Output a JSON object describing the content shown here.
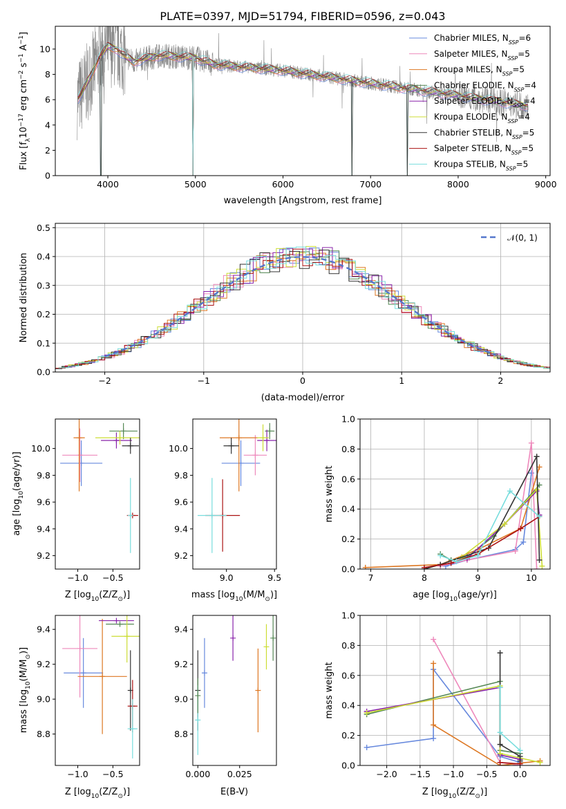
{
  "figure": {
    "title": "PLATE=0397, MJD=51794, FIBERID=0596, z=0.043",
    "models": [
      {
        "label": "Chabrier MILES, N",
        "nssp": "=6",
        "color": "#6688dd"
      },
      {
        "label": "Salpeter MILES, N",
        "nssp": "=5",
        "color": "#ee88bb"
      },
      {
        "label": "Kroupa MILES, N",
        "nssp": "=5",
        "color": "#dd7722"
      },
      {
        "label": "Chabrier ELODIE, N",
        "nssp": "=4",
        "color": "#558855"
      },
      {
        "label": "Salpeter ELODIE, N",
        "nssp": "=4",
        "color": "#8822aa"
      },
      {
        "label": "Kroupa ELODIE, N",
        "nssp": "=4",
        "color": "#ccdd33"
      },
      {
        "label": "Chabrier STELIB, N",
        "nssp": "=5",
        "color": "#333333"
      },
      {
        "label": "Salpeter STELIB, N",
        "nssp": "=5",
        "color": "#aa1111"
      },
      {
        "label": "Kroupa STELIB, N",
        "nssp": "=5",
        "color": "#77dddd"
      }
    ],
    "ssp_subscript": "SSP"
  },
  "chart_data": [
    {
      "id": "spectrum",
      "type": "line",
      "xlabel": "wavelength [Angstrom, rest frame]",
      "ylabel": "Flux [f",
      "ylabel_parts": [
        "Flux [f",
        "λ",
        "10",
        "−17",
        " erg cm",
        "−2",
        " s",
        "−1",
        " A",
        "−1",
        "]"
      ],
      "xlim": [
        3400,
        9050
      ],
      "ylim": [
        0,
        11.8
      ],
      "xticks": [
        4000,
        5000,
        6000,
        7000,
        8000,
        9000
      ],
      "yticks": [
        0,
        2,
        4,
        6,
        8,
        10
      ],
      "observed_color": "#888888",
      "observed_range": [
        3650,
        8800
      ],
      "model_profile": {
        "x": [
          3650,
          3700,
          3800,
          3900,
          4000,
          4100,
          4200,
          4300,
          4400,
          4600,
          4800,
          5000,
          5200,
          5500,
          6000,
          6500,
          7000,
          7500,
          8000,
          8500,
          8800
        ],
        "y": [
          6.0,
          6.5,
          7.8,
          9.3,
          10.2,
          10.0,
          9.4,
          9.0,
          9.2,
          9.5,
          9.4,
          9.3,
          8.8,
          8.6,
          8.3,
          7.8,
          7.3,
          6.8,
          6.3,
          5.8,
          5.5
        ]
      }
    },
    {
      "id": "residuals",
      "type": "histogram",
      "xlabel": "(data-model)/error",
      "ylabel": "Normed distribution",
      "xlim": [
        -2.5,
        2.5
      ],
      "ylim": [
        0,
        0.515
      ],
      "xticks": [
        -2,
        -1,
        0,
        1,
        2
      ],
      "yticks": [
        0.0,
        0.1,
        0.2,
        0.3,
        0.4,
        0.5
      ],
      "grid": true,
      "legend": "top-right",
      "reference_label": "𝒩(0, 1)",
      "reference_color": "#5577cc"
    },
    {
      "id": "age_vs_Z",
      "type": "scatter",
      "xlabel": "Z [log",
      "xlabel_parts": [
        "Z [log",
        "10",
        "(Z/Z",
        "⊙",
        ")]"
      ],
      "ylabel_parts": [
        "age  [log",
        "10",
        "(age/yr)]"
      ],
      "xlim": [
        -1.32,
        -0.12
      ],
      "ylim": [
        9.1,
        10.22
      ],
      "xticks": [
        -1.0,
        -0.5
      ],
      "yticks": [
        9.2,
        9.4,
        9.6,
        9.8,
        10.0
      ],
      "points": [
        {
          "x": -0.95,
          "y": 9.89,
          "ex": 0.3,
          "ey": 0.17,
          "c": 0
        },
        {
          "x": -0.97,
          "y": 9.95,
          "ex": 0.25,
          "ey": 0.2,
          "c": 1
        },
        {
          "x": -0.98,
          "y": 10.08,
          "ex": 0.08,
          "ey": 0.4,
          "c": 2
        },
        {
          "x": -0.35,
          "y": 10.13,
          "ex": 0.2,
          "ey": 0.06,
          "c": 3
        },
        {
          "x": -0.45,
          "y": 10.06,
          "ex": 0.22,
          "ey": 0.06,
          "c": 4
        },
        {
          "x": -0.4,
          "y": 10.08,
          "ex": 0.35,
          "ey": 0.05,
          "c": 5
        },
        {
          "x": -0.25,
          "y": 10.02,
          "ex": 0.12,
          "ey": 0.06,
          "c": 6
        },
        {
          "x": -0.22,
          "y": 9.5,
          "ex": 0.08,
          "ey": 0.0,
          "c": 7
        },
        {
          "x": -0.25,
          "y": 9.5,
          "ex": 0.0,
          "ey": 0.28,
          "c": 8
        }
      ]
    },
    {
      "id": "age_vs_mass",
      "type": "scatter",
      "xlabel_parts": [
        "mass [log",
        "10",
        "(M/M",
        "⊙",
        ")]"
      ],
      "xlim": [
        8.65,
        9.52
      ],
      "ylim": [
        9.1,
        10.22
      ],
      "xticks": [
        9.0,
        9.5
      ],
      "yticks": [
        9.2,
        9.4,
        9.6,
        9.8,
        10.0
      ],
      "points": [
        {
          "x": 9.15,
          "y": 9.89,
          "ex": 0.2,
          "ey": 0.17,
          "c": 0
        },
        {
          "x": 9.3,
          "y": 9.95,
          "ex": 0.12,
          "ey": 0.15,
          "c": 1
        },
        {
          "x": 9.13,
          "y": 10.08,
          "ex": 0.2,
          "ey": 0.4,
          "c": 2
        },
        {
          "x": 9.45,
          "y": 10.13,
          "ex": 0.05,
          "ey": 0.06,
          "c": 3
        },
        {
          "x": 9.42,
          "y": 10.06,
          "ex": 0.1,
          "ey": 0.08,
          "c": 4
        },
        {
          "x": 9.38,
          "y": 10.08,
          "ex": 0.06,
          "ey": 0.1,
          "c": 5
        },
        {
          "x": 9.05,
          "y": 10.02,
          "ex": 0.08,
          "ey": 0.06,
          "c": 6
        },
        {
          "x": 8.96,
          "y": 9.5,
          "ex": 0.18,
          "ey": 0.27,
          "c": 7
        },
        {
          "x": 8.85,
          "y": 9.5,
          "ex": 0.15,
          "ey": 0.28,
          "c": 8
        }
      ]
    },
    {
      "id": "weight_vs_age",
      "type": "line",
      "xlabel_parts": [
        "age  [log",
        "10",
        "(age/yr)]"
      ],
      "ylabel": "mass weight",
      "xlim": [
        6.8,
        10.35
      ],
      "ylim": [
        0,
        1.0
      ],
      "xticks": [
        7,
        8,
        9,
        10
      ],
      "yticks": [
        0.0,
        0.2,
        0.4,
        0.6,
        0.8,
        1.0
      ],
      "grid": true,
      "series": [
        {
          "c": 0,
          "x": [
            8.4,
            8.8,
            9.7,
            9.85,
            10.0
          ],
          "y": [
            0.02,
            0.06,
            0.13,
            0.18,
            0.64
          ]
        },
        {
          "c": 1,
          "x": [
            8.3,
            8.8,
            9.7,
            10.0,
            10.1
          ],
          "y": [
            0.02,
            0.06,
            0.12,
            0.84,
            0.0
          ]
        },
        {
          "c": 2,
          "x": [
            6.9,
            8.3,
            9.0,
            9.8,
            10.15
          ],
          "y": [
            0.01,
            0.03,
            0.13,
            0.27,
            0.68
          ]
        },
        {
          "c": 3,
          "x": [
            8.3,
            8.5,
            8.8,
            9.3,
            10.15
          ],
          "y": [
            0.1,
            0.06,
            0.08,
            0.22,
            0.56
          ]
        },
        {
          "c": 4,
          "x": [
            8.8,
            9.5,
            10.1,
            10.15
          ],
          "y": [
            0.07,
            0.3,
            0.52,
            0.36
          ]
        },
        {
          "c": 5,
          "x": [
            8.7,
            9.5,
            10.1,
            10.2
          ],
          "y": [
            0.08,
            0.3,
            0.53,
            0.02
          ]
        },
        {
          "c": 6,
          "x": [
            8.0,
            8.3,
            9.2,
            10.1,
            10.15
          ],
          "y": [
            0.0,
            0.03,
            0.14,
            0.75,
            0.06
          ]
        },
        {
          "c": 7,
          "x": [
            8.0,
            8.5,
            9.0,
            9.8,
            10.15
          ],
          "y": [
            0.01,
            0.04,
            0.1,
            0.27,
            0.35
          ]
        },
        {
          "c": 8,
          "x": [
            8.3,
            8.6,
            9.0,
            9.6,
            10.15
          ],
          "y": [
            0.09,
            0.05,
            0.09,
            0.52,
            0.35
          ]
        }
      ]
    },
    {
      "id": "mass_vs_Z",
      "type": "scatter",
      "xlabel_parts": [
        "Z [log",
        "10",
        "(Z/Z",
        "⊙",
        ")]"
      ],
      "ylabel_parts": [
        "mass [log",
        "10",
        "(M/M",
        "⊙",
        ")]"
      ],
      "xlim": [
        -1.32,
        -0.12
      ],
      "ylim": [
        8.62,
        9.48
      ],
      "xticks": [
        -1.0,
        -0.5
      ],
      "yticks": [
        8.8,
        9.0,
        9.2,
        9.4
      ],
      "points": [
        {
          "x": -0.92,
          "y": 9.15,
          "ex": 0.28,
          "ey": 0.2,
          "c": 0
        },
        {
          "x": -0.97,
          "y": 9.29,
          "ex": 0.25,
          "ey": 0.28,
          "c": 1
        },
        {
          "x": -0.65,
          "y": 9.13,
          "ex": 0.35,
          "ey": 0.33,
          "c": 2
        },
        {
          "x": -0.4,
          "y": 9.43,
          "ex": 0.2,
          "ey": 0.0,
          "c": 3
        },
        {
          "x": -0.45,
          "y": 9.45,
          "ex": 0.25,
          "ey": 0.0,
          "c": 4
        },
        {
          "x": -0.3,
          "y": 9.36,
          "ex": 0.22,
          "ey": 0.15,
          "c": 5
        },
        {
          "x": -0.25,
          "y": 9.05,
          "ex": 0.0,
          "ey": 0.23,
          "c": 6
        },
        {
          "x": -0.22,
          "y": 8.96,
          "ex": 0.07,
          "ey": 0.15,
          "c": 7
        },
        {
          "x": -0.22,
          "y": 8.83,
          "ex": 0.07,
          "ey": 0.17,
          "c": 8
        }
      ]
    },
    {
      "id": "mass_vs_ebv",
      "type": "scatter",
      "xlabel": "E(B-V)",
      "xlim": [
        -0.003,
        0.047
      ],
      "ylim": [
        8.62,
        9.48
      ],
      "xticks": [
        0.0,
        0.025
      ],
      "yticks": [
        8.8,
        9.0,
        9.2,
        9.4
      ],
      "points": [
        {
          "x": 0.0,
          "y": 9.05,
          "ey": 0.23,
          "c": 6
        },
        {
          "x": 0.0,
          "y": 8.88,
          "ey": 0.2,
          "c": 8
        },
        {
          "x": 0.0,
          "y": 9.02,
          "ey": 0.1,
          "c": 3
        },
        {
          "x": 0.004,
          "y": 9.15,
          "ey": 0.2,
          "c": 0
        },
        {
          "x": 0.021,
          "y": 9.35,
          "ey": 0.13,
          "c": 4
        },
        {
          "x": 0.036,
          "y": 9.05,
          "ey": 0.24,
          "c": 2
        },
        {
          "x": 0.041,
          "y": 9.3,
          "ey": 0.13,
          "c": 5
        },
        {
          "x": 0.045,
          "y": 9.35,
          "ey": 0.13,
          "c": 3
        }
      ]
    },
    {
      "id": "weight_vs_Z",
      "type": "line",
      "xlabel_parts": [
        "Z [log",
        "10",
        "(Z/Z",
        "⊙",
        ")]"
      ],
      "ylabel": "mass weight",
      "xlim": [
        -2.4,
        0.45
      ],
      "ylim": [
        0,
        1.0
      ],
      "xticks": [
        -2.0,
        -1.5,
        -1.0,
        -0.5,
        0.0
      ],
      "yticks": [
        0.0,
        0.2,
        0.4,
        0.6,
        0.8,
        1.0
      ],
      "grid": true,
      "series": [
        {
          "c": 0,
          "x": [
            -2.3,
            -1.3,
            -1.3,
            -0.3,
            0.0
          ],
          "y": [
            0.12,
            0.18,
            0.64,
            0.06,
            0.02
          ]
        },
        {
          "c": 1,
          "x": [
            -1.3,
            -0.3,
            0.0
          ],
          "y": [
            0.84,
            0.02,
            0.0
          ]
        },
        {
          "c": 2,
          "x": [
            -1.3,
            -1.3,
            -0.3,
            0.3
          ],
          "y": [
            0.68,
            0.27,
            0.0,
            0.03
          ]
        },
        {
          "c": 3,
          "x": [
            -2.3,
            -0.3,
            -0.3,
            0.0
          ],
          "y": [
            0.34,
            0.56,
            0.1,
            0.08
          ]
        },
        {
          "c": 4,
          "x": [
            -2.3,
            -0.3,
            -0.3,
            0.0
          ],
          "y": [
            0.36,
            0.52,
            0.07,
            0.04
          ]
        },
        {
          "c": 5,
          "x": [
            -2.3,
            -0.3,
            -0.3,
            0.3
          ],
          "y": [
            0.35,
            0.53,
            0.08,
            0.02
          ]
        },
        {
          "c": 6,
          "x": [
            -0.3,
            -0.3,
            0.0,
            0.0
          ],
          "y": [
            0.75,
            0.14,
            0.06,
            0.03
          ]
        },
        {
          "c": 7,
          "x": [
            -0.3,
            0.0
          ],
          "y": [
            0.02,
            0.01
          ]
        },
        {
          "c": 8,
          "x": [
            -0.3,
            -0.3,
            0.0
          ],
          "y": [
            0.52,
            0.22,
            0.1
          ]
        }
      ]
    }
  ]
}
